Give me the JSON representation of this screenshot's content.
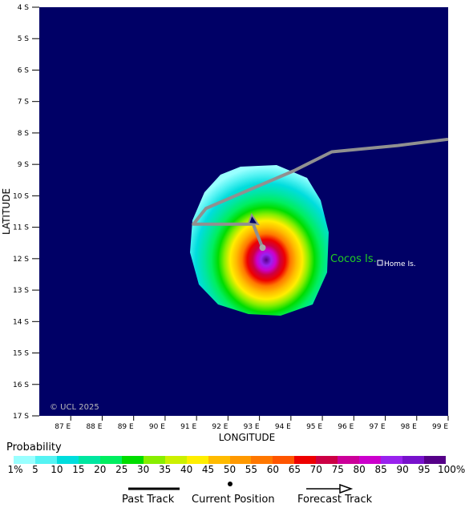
{
  "map": {
    "copyright": "© UCL 2025",
    "xlabel": "LONGITUDE",
    "ylabel": "LATITUDE",
    "lon_ticks": [
      "87 E",
      "88 E",
      "89 E",
      "90 E",
      "91 E",
      "92 E",
      "93 E",
      "94 E",
      "95 E",
      "96 E",
      "97 E",
      "98 E",
      "99 E"
    ],
    "lat_ticks": [
      "4 S",
      "5 S",
      "6 S",
      "7 S",
      "8 S",
      "9 S",
      "10 S",
      "11 S",
      "12 S",
      "13 S",
      "14 S",
      "15 S",
      "16 S",
      "17 S"
    ],
    "places": {
      "island_name": "Cocos Is.",
      "settlement": "Home Is."
    },
    "track_lonlat": [
      [
        99.0,
        8.2
      ],
      [
        97.4,
        8.4
      ],
      [
        95.3,
        8.6
      ],
      [
        94.1,
        9.2
      ],
      [
        91.3,
        10.4
      ],
      [
        90.9,
        10.9
      ],
      [
        92.8,
        10.9
      ],
      [
        93.1,
        11.65
      ]
    ],
    "current_position": [
      93.1,
      11.65
    ],
    "colors": {
      "background": "#000066",
      "track": "#909090",
      "island_label": "#22cc22"
    }
  },
  "legend": {
    "title": "Probability",
    "labels": [
      "1%",
      "5",
      "10",
      "15",
      "20",
      "25",
      "30",
      "35",
      "40",
      "45",
      "50",
      "55",
      "60",
      "65",
      "70",
      "75",
      "80",
      "85",
      "90",
      "95",
      "100%"
    ],
    "colors": [
      "#99ffff",
      "#55f3f3",
      "#00dddd",
      "#00e6a0",
      "#00ee60",
      "#00dd00",
      "#88ee00",
      "#ccf000",
      "#ffee00",
      "#ffbb00",
      "#ff9900",
      "#ff7700",
      "#ff5500",
      "#ee0000",
      "#cc0044",
      "#cc0099",
      "#cc00cc",
      "#9922ee",
      "#7711cc",
      "#550088"
    ]
  },
  "key": {
    "past_track": "Past Track",
    "current_position": "Current Position",
    "forecast_track": "Forecast Track"
  }
}
